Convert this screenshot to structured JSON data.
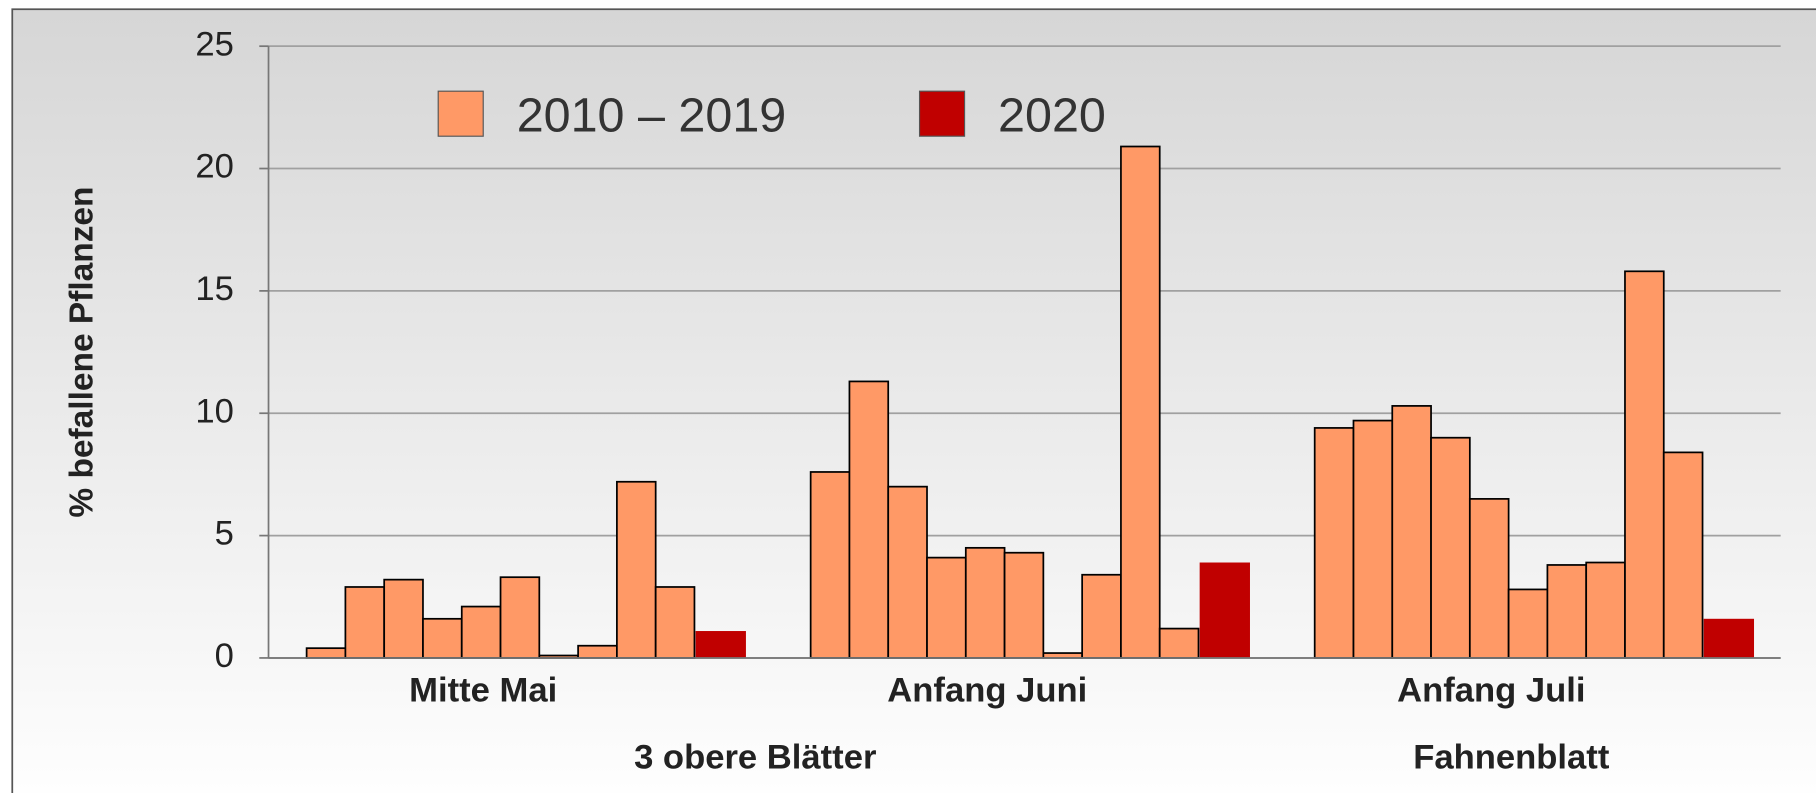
{
  "chart_data": {
    "type": "bar",
    "ylabel": "% befallene Pflanzen",
    "categories": [
      "Mitte Mai",
      "Anfang Juni",
      "Anfang Juli"
    ],
    "groups": [
      "3 obere Blätter",
      "Fahnenblatt"
    ],
    "series": [
      {
        "name": "2010 – 2019",
        "color": "#ff9966",
        "values": [
          [
            0.4,
            2.9,
            3.2,
            1.6,
            2.1,
            3.3,
            0.1,
            0.5,
            7.2,
            2.9
          ],
          [
            7.6,
            11.3,
            7.0,
            4.1,
            4.5,
            4.3,
            0.2,
            3.4,
            20.9,
            1.2
          ],
          [
            9.4,
            9.7,
            10.3,
            9.0,
            6.5,
            2.8,
            3.8,
            3.9,
            15.8,
            8.4
          ]
        ]
      },
      {
        "name": "2020",
        "color": "#c00000",
        "values": [
          1.1,
          3.9,
          1.6
        ]
      }
    ],
    "ylim": [
      0,
      25
    ],
    "yticks": [
      0,
      5,
      10,
      15,
      20,
      25
    ],
    "grid": true
  }
}
